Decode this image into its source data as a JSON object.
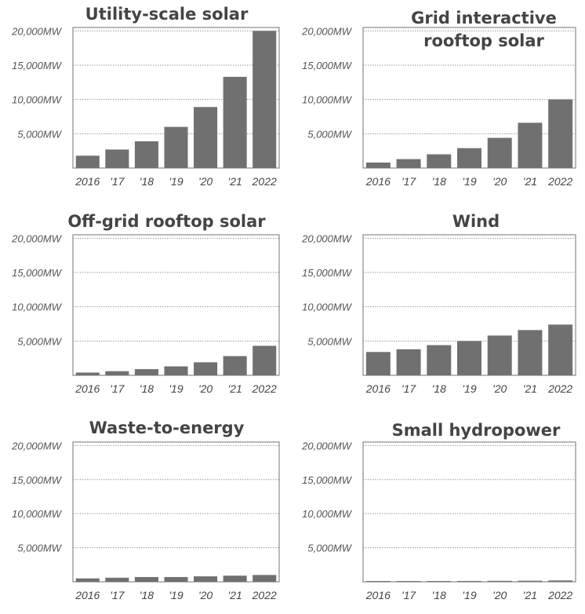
{
  "chart_data": [
    {
      "type": "bar",
      "title": "Utility-scale solar",
      "categories": [
        "2016",
        "'17",
        "'18",
        "'19",
        "'20",
        "'21",
        "2022"
      ],
      "values": [
        1800,
        2700,
        3900,
        6000,
        8900,
        13300,
        20000
      ],
      "yticks": [
        "20,000MW",
        "15,000MW",
        "10,000MW",
        "5,000MW"
      ],
      "ylim": [
        0,
        20500
      ],
      "grid": true,
      "color": "#707070"
    },
    {
      "type": "bar",
      "title": "Grid interactive rooftop solar",
      "categories": [
        "2016",
        "'17",
        "'18",
        "'19",
        "'20",
        "'21",
        "2022"
      ],
      "values": [
        800,
        1300,
        2000,
        2900,
        4400,
        6600,
        10000
      ],
      "yticks": [
        "20,000MW",
        "15,000MW",
        "10,000MW",
        "5,000MW"
      ],
      "ylim": [
        0,
        20500
      ],
      "grid": true,
      "color": "#707070"
    },
    {
      "type": "bar",
      "title": "Off-grid rooftop solar",
      "categories": [
        "2016",
        "'17",
        "'18",
        "'19",
        "'20",
        "'21",
        "2022"
      ],
      "values": [
        400,
        600,
        900,
        1300,
        1900,
        2800,
        4300
      ],
      "yticks": [
        "20,000MW",
        "15,000MW",
        "10,000MW",
        "5,000MW"
      ],
      "ylim": [
        0,
        20500
      ],
      "grid": true,
      "color": "#707070"
    },
    {
      "type": "bar",
      "title": "Wind",
      "categories": [
        "2016",
        "'17",
        "'18",
        "'19",
        "'20",
        "'21",
        "2022"
      ],
      "values": [
        3400,
        3800,
        4400,
        5000,
        5800,
        6600,
        7400
      ],
      "yticks": [
        "20,000MW",
        "15,000MW",
        "10,000MW",
        "5,000MW"
      ],
      "ylim": [
        0,
        20500
      ],
      "grid": true,
      "color": "#707070"
    },
    {
      "type": "bar",
      "title": "Waste-to-energy",
      "categories": [
        "2016",
        "'17",
        "'18",
        "'19",
        "'20",
        "'21",
        "2022"
      ],
      "values": [
        500,
        600,
        700,
        700,
        800,
        900,
        1000
      ],
      "yticks": [
        "20,000MW",
        "15,000MW",
        "10,000MW",
        "5,000MW"
      ],
      "ylim": [
        0,
        20500
      ],
      "grid": true,
      "color": "#707070"
    },
    {
      "type": "bar",
      "title": "Small hydropower",
      "categories": [
        "2016",
        "'17",
        "'18",
        "'19",
        "'20",
        "'21",
        "2022"
      ],
      "values": [
        50,
        60,
        80,
        120,
        140,
        160,
        200
      ],
      "yticks": [
        "20,000MW",
        "15,000MW",
        "10,000MW",
        "5,000MW"
      ],
      "ylim": [
        0,
        20500
      ],
      "grid": true,
      "color": "#707070"
    }
  ]
}
